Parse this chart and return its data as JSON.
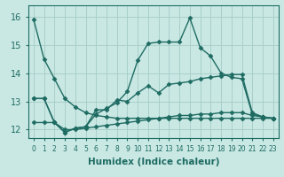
{
  "xlabel": "Humidex (Indice chaleur)",
  "xlim": [
    -0.5,
    23.5
  ],
  "ylim": [
    11.7,
    16.4
  ],
  "yticks": [
    12,
    13,
    14,
    15,
    16
  ],
  "xticks": [
    0,
    1,
    2,
    3,
    4,
    5,
    6,
    7,
    8,
    9,
    10,
    11,
    12,
    13,
    14,
    15,
    16,
    17,
    18,
    19,
    20,
    21,
    22,
    23
  ],
  "bg_color": "#c9e8e4",
  "grid_color": "#aacfca",
  "line_color": "#1e6b62",
  "lines": [
    {
      "x": [
        0,
        1,
        2,
        3,
        4,
        5,
        6,
        7,
        8,
        9,
        10,
        11,
        12,
        13,
        14,
        15,
        16,
        17,
        18,
        19,
        20,
        21,
        22,
        23
      ],
      "y": [
        15.9,
        14.5,
        13.8,
        13.1,
        12.8,
        12.6,
        12.5,
        12.45,
        12.4,
        12.4,
        12.4,
        12.4,
        12.4,
        12.4,
        12.4,
        12.4,
        12.4,
        12.4,
        12.4,
        12.4,
        12.4,
        12.4,
        12.4,
        12.4
      ]
    },
    {
      "x": [
        0,
        1,
        2,
        3,
        4,
        5,
        6,
        7,
        8,
        9,
        10,
        11,
        12,
        13,
        14,
        15,
        16,
        17,
        18,
        19,
        20,
        21,
        22,
        23
      ],
      "y": [
        12.25,
        12.25,
        12.25,
        12.0,
        12.0,
        12.05,
        12.1,
        12.15,
        12.2,
        12.25,
        12.3,
        12.35,
        12.4,
        12.45,
        12.5,
        12.5,
        12.55,
        12.55,
        12.6,
        12.6,
        12.6,
        12.5,
        12.45,
        12.4
      ]
    },
    {
      "x": [
        0,
        1,
        2,
        3,
        4,
        5,
        6,
        7,
        8,
        9,
        10,
        11,
        12,
        13,
        14,
        15,
        16,
        17,
        18,
        19,
        20,
        21,
        22,
        23
      ],
      "y": [
        13.1,
        13.1,
        12.25,
        11.9,
        12.05,
        12.1,
        12.55,
        12.75,
        12.95,
        13.35,
        14.45,
        15.05,
        15.1,
        15.1,
        15.1,
        15.95,
        14.9,
        14.6,
        14.0,
        13.85,
        13.8,
        12.55,
        12.45,
        12.4
      ]
    },
    {
      "x": [
        0,
        1,
        2,
        3,
        4,
        5,
        6,
        7,
        8,
        9,
        10,
        11,
        12,
        13,
        14,
        15,
        16,
        17,
        18,
        19,
        20,
        21,
        22,
        23
      ],
      "y": [
        13.1,
        13.1,
        12.25,
        11.9,
        12.05,
        12.1,
        12.7,
        12.7,
        13.05,
        13.0,
        13.3,
        13.55,
        13.3,
        13.6,
        13.65,
        13.7,
        13.8,
        13.85,
        13.9,
        13.95,
        13.95,
        12.6,
        12.45,
        12.4
      ]
    }
  ],
  "font_size": 7,
  "xlabel_fontsize": 7.5,
  "marker": "D",
  "marker_size": 2.5,
  "linewidth": 1.0
}
